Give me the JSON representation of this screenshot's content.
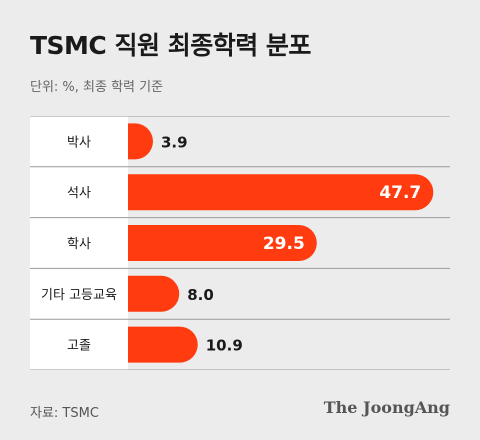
{
  "title": "TSMC 직원 최종학력 분포",
  "subtitle": "단위: %, 최종 학력 기준",
  "source": "자료: TSMC",
  "brand": "The JoongAng",
  "colors": {
    "bar": "#ff3b0f",
    "label_bg": "#ffffff",
    "divider": "#9a9a9a",
    "value_outside": "#1a1a1a",
    "value_inside": "#ffffff"
  },
  "chart_data": {
    "type": "bar",
    "orientation": "horizontal",
    "categories": [
      "박사",
      "석사",
      "학사",
      "기타 고등교육",
      "고졸"
    ],
    "values": [
      3.9,
      47.7,
      29.5,
      8.0,
      10.9
    ],
    "value_labels": [
      "3.9",
      "47.7",
      "29.5",
      "8.0",
      "10.9"
    ],
    "unit": "%",
    "xlim": [
      0,
      50
    ],
    "grid": false,
    "legend": "none"
  }
}
